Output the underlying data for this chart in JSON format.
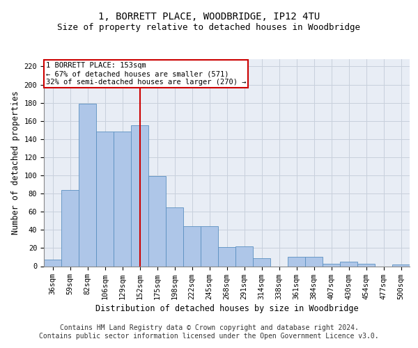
{
  "title": "1, BORRETT PLACE, WOODBRIDGE, IP12 4TU",
  "subtitle": "Size of property relative to detached houses in Woodbridge",
  "xlabel": "Distribution of detached houses by size in Woodbridge",
  "ylabel": "Number of detached properties",
  "footer_line1": "Contains HM Land Registry data © Crown copyright and database right 2024.",
  "footer_line2": "Contains public sector information licensed under the Open Government Licence v3.0.",
  "annotation_line1": "1 BORRETT PLACE: 153sqm",
  "annotation_line2": "← 67% of detached houses are smaller (571)",
  "annotation_line3": "32% of semi-detached houses are larger (270) →",
  "bar_labels": [
    "36sqm",
    "59sqm",
    "82sqm",
    "106sqm",
    "129sqm",
    "152sqm",
    "175sqm",
    "198sqm",
    "222sqm",
    "245sqm",
    "268sqm",
    "291sqm",
    "314sqm",
    "338sqm",
    "361sqm",
    "384sqm",
    "407sqm",
    "430sqm",
    "454sqm",
    "477sqm",
    "500sqm"
  ],
  "bar_values": [
    7,
    84,
    179,
    148,
    148,
    155,
    99,
    65,
    44,
    44,
    21,
    22,
    9,
    0,
    10,
    10,
    3,
    5,
    3,
    0,
    2
  ],
  "bar_color": "#aec6e8",
  "bar_edge_color": "#5a8fc0",
  "bar_width": 1.0,
  "vline_color": "#cc0000",
  "vline_x": 5,
  "ylim": [
    0,
    228
  ],
  "yticks": [
    0,
    20,
    40,
    60,
    80,
    100,
    120,
    140,
    160,
    180,
    200,
    220
  ],
  "grid_color": "#c8d0dc",
  "background_color": "#e8edf5",
  "title_fontsize": 10,
  "subtitle_fontsize": 9,
  "axis_label_fontsize": 8.5,
  "tick_fontsize": 7.5,
  "annotation_fontsize": 7.5,
  "footer_fontsize": 7
}
